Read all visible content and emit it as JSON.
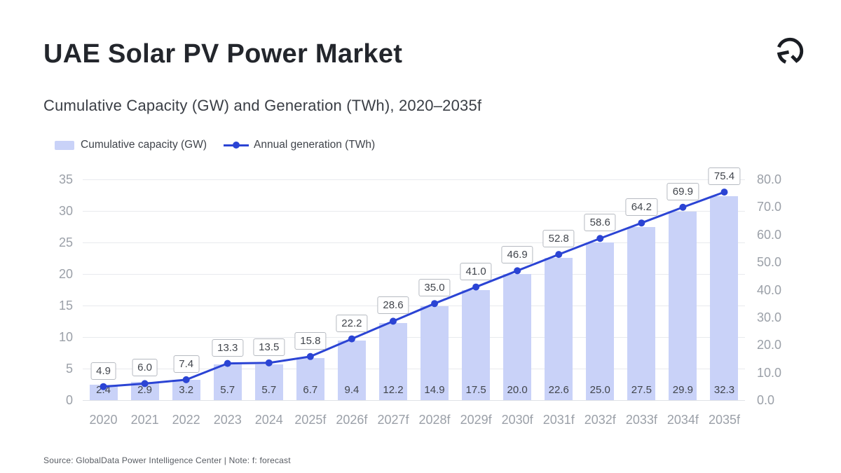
{
  "header": {
    "title": "UAE Solar PV Power Market",
    "subtitle": "Cumulative Capacity (GW) and Generation (TWh), 2020–2035f"
  },
  "legend": {
    "capacity_label": "Cumulative capacity (GW)",
    "generation_label": "Annual generation (TWh)"
  },
  "footer": {
    "source": "Source: GlobalData Power Intelligence Center | Note: f: forecast"
  },
  "logo": {
    "name": "globaldata-circle-mark"
  },
  "colors": {
    "bar": "#c9d2f8",
    "line": "#2b44d4",
    "grid": "#e8eaee",
    "baseline": "#dfe2e7",
    "axis_text": "#9ba0a8",
    "value_text": "#41454c",
    "box_border": "#b6bac1",
    "logo_ink": "#1a1d23"
  },
  "chart_data": {
    "type": "combo-bar-line",
    "title": "Cumulative Capacity (GW) and Generation (TWh), 2020–2035f",
    "categories": [
      "2020",
      "2021",
      "2022",
      "2023",
      "2024",
      "2025f",
      "2026f",
      "2027f",
      "2028f",
      "2029f",
      "2030f",
      "2031f",
      "2032f",
      "2033f",
      "2034f",
      "2035f"
    ],
    "series": [
      {
        "name": "Cumulative capacity (GW)",
        "kind": "bar",
        "axis": "left",
        "values": [
          2.4,
          2.9,
          3.2,
          5.7,
          5.7,
          6.7,
          9.4,
          12.2,
          14.9,
          17.5,
          20.0,
          22.6,
          25.0,
          27.5,
          29.9,
          32.3
        ],
        "labels": [
          "2.4",
          "2.9",
          "3.2",
          "5.7",
          "5.7",
          "6.7",
          "9.4",
          "12.2",
          "14.9",
          "17.5",
          "20.0",
          "22.6",
          "25.0",
          "27.5",
          "29.9",
          "32.3"
        ]
      },
      {
        "name": "Annual generation (TWh)",
        "kind": "line",
        "axis": "right",
        "values": [
          4.9,
          6.0,
          7.4,
          13.3,
          13.5,
          15.8,
          22.2,
          28.6,
          35.0,
          41.0,
          46.9,
          52.8,
          58.6,
          64.2,
          69.9,
          75.4
        ],
        "labels": [
          "4.9",
          "6.0",
          "7.4",
          "13.3",
          "13.5",
          "15.8",
          "22.2",
          "28.6",
          "35.0",
          "41.0",
          "46.9",
          "52.8",
          "58.6",
          "64.2",
          "69.9",
          "75.4"
        ]
      }
    ],
    "left_axis": {
      "range": [
        0,
        35
      ],
      "ticks": [
        "0",
        "5",
        "10",
        "15",
        "20",
        "25",
        "30",
        "35"
      ]
    },
    "right_axis": {
      "range": [
        0,
        80
      ],
      "ticks": [
        "0.0",
        "10.0",
        "20.0",
        "30.0",
        "40.0",
        "50.0",
        "60.0",
        "70.0",
        "80.0"
      ]
    },
    "grid": true,
    "legend_position": "top-left"
  }
}
